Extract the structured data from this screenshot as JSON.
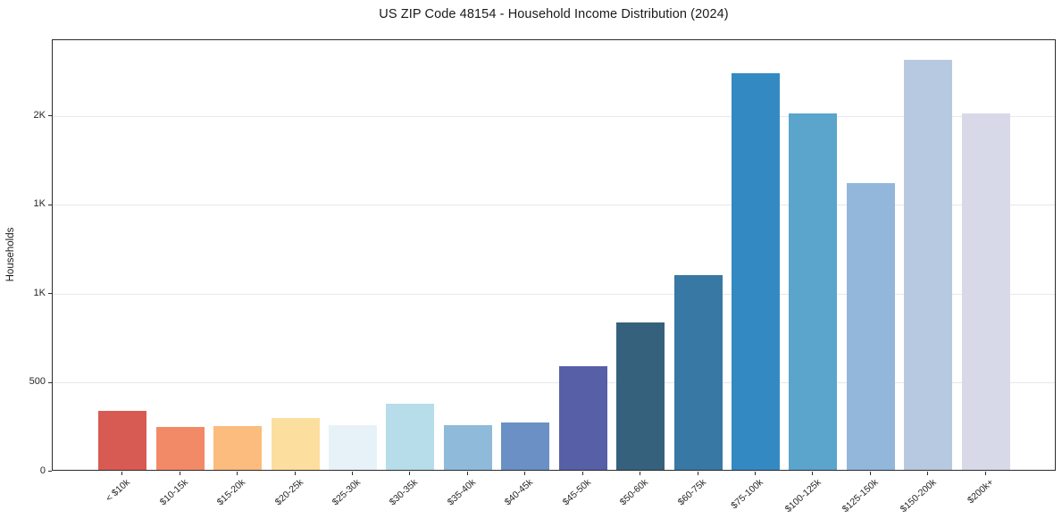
{
  "chart_data": {
    "type": "bar",
    "title": "US ZIP Code 48154 - Household Income Distribution (2024)",
    "xlabel": "",
    "ylabel": "Households",
    "categories": [
      "< $10k",
      "$10-15k",
      "$15-20k",
      "$20-25k",
      "$25-30k",
      "$30-35k",
      "$35-40k",
      "$40-45k",
      "$45-50k",
      "$50-60k",
      "$60-75k",
      "$75-100k",
      "$100-125k",
      "$125-150k",
      "$150-200k",
      "$200k+"
    ],
    "values": [
      330,
      240,
      245,
      290,
      250,
      370,
      250,
      265,
      585,
      830,
      1095,
      2235,
      2005,
      1615,
      2310,
      2005
    ],
    "bar_colors": [
      "#d75b53",
      "#f28a68",
      "#fbbc7d",
      "#fcdf9e",
      "#e7f2f8",
      "#b7dcea",
      "#8fbada",
      "#6a90c5",
      "#575fa7",
      "#35617c",
      "#3878a4",
      "#338ac2",
      "#5ba4cc",
      "#93b7db",
      "#b7c9e0",
      "#d8d9e8"
    ],
    "ylim": [
      0,
      2430
    ],
    "yticks": [
      {
        "value": 0,
        "label": "0"
      },
      {
        "value": 500,
        "label": "500"
      },
      {
        "value": 1000,
        "label": "1K"
      },
      {
        "value": 1500,
        "label": "1K"
      },
      {
        "value": 2000,
        "label": "2K"
      }
    ],
    "grid": "horizontal",
    "legend_position": "none",
    "grid_color": "#e7e7ee",
    "spine_color": "#2b2b2b",
    "background_color": "#ffffff",
    "text_color": "#262626"
  }
}
